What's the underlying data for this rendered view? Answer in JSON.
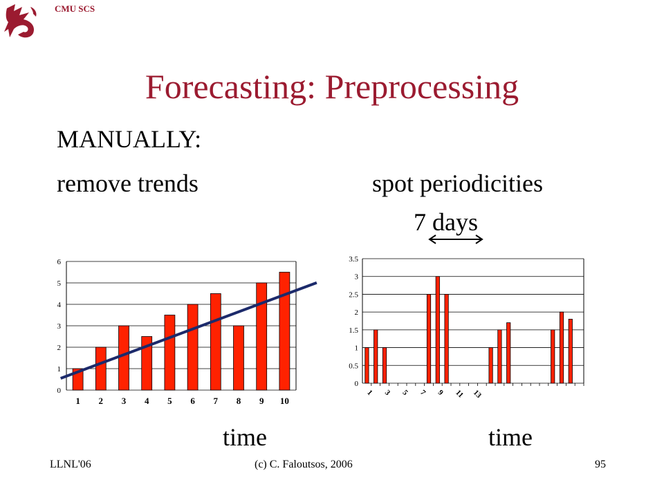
{
  "header": {
    "org": "CMU SCS",
    "logo_icon": "dragon-logo-icon"
  },
  "slide": {
    "title": "Forecasting: Preprocessing",
    "subtitle": "MANUALLY:",
    "left_label": "remove trends",
    "right_label": "spot periodicities",
    "period_label": "7 days",
    "xlabel_left": "time",
    "xlabel_right": "time"
  },
  "footer": {
    "left": "LLNL'06",
    "center": "(c) C. Faloutsos, 2006",
    "right": "95"
  },
  "colors": {
    "title": "#9b1b30",
    "bar_fill": "#ff2200",
    "trend_line": "#1c2a6b"
  },
  "chart_data": [
    {
      "type": "bar",
      "categories": [
        "1",
        "2",
        "3",
        "4",
        "5",
        "6",
        "7",
        "8",
        "9",
        "10"
      ],
      "values": [
        1,
        2,
        3,
        2.5,
        3.5,
        4,
        4.5,
        3,
        5,
        5.5
      ],
      "ylim": [
        0,
        6
      ],
      "yticks": [
        "0",
        "1",
        "2",
        "3",
        "4",
        "5",
        "6"
      ],
      "grid": true,
      "trend_line": {
        "start": 0.85,
        "end": 4.45
      }
    },
    {
      "type": "bar",
      "n_points": 25,
      "values": [
        1,
        1.5,
        1,
        0,
        0,
        0,
        0,
        2.5,
        3,
        2.5,
        0,
        0,
        0,
        0,
        1,
        1.5,
        1.7,
        0,
        0,
        0,
        0,
        1.5,
        2,
        1.8,
        0
      ],
      "xtick_labels": [
        "1",
        "3",
        "5",
        "7",
        "9",
        "11",
        "13"
      ],
      "ylim": [
        0,
        3.5
      ],
      "yticks": [
        "0",
        "0.5",
        "1",
        "1.5",
        "2",
        "2.5",
        "3",
        "3.5"
      ],
      "grid": true
    }
  ]
}
